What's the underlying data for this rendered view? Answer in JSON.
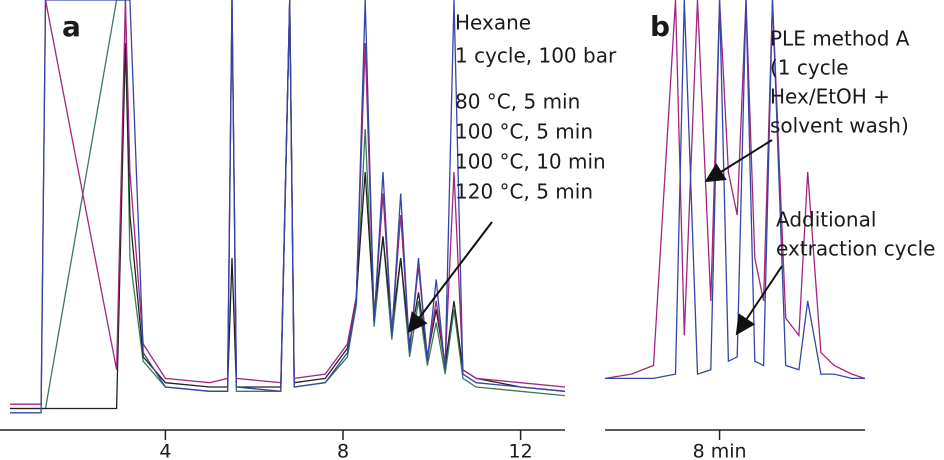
{
  "chart_data": [
    {
      "type": "line",
      "panel_label": "a",
      "annotations": [
        "Hexane",
        "1 cycle, 100 bar",
        "80 °C, 5 min",
        "100 °C, 5 min",
        "100 °C, 10 min",
        "120 °C, 5 min"
      ],
      "x": [
        0.5,
        1.2,
        1.3,
        2.9,
        3.1,
        3.2,
        3.5,
        4.0,
        5.0,
        5.4,
        5.5,
        5.6,
        6.6,
        6.8,
        6.9,
        7.6,
        8.1,
        8.3,
        8.5,
        8.7,
        8.9,
        9.1,
        9.3,
        9.5,
        9.7,
        9.9,
        10.1,
        10.3,
        10.5,
        10.7,
        11.0,
        12.0,
        13.0
      ],
      "series": [
        {
          "color": "#3b7a57",
          "values": [
            5,
            5,
            5,
            100,
            100,
            40,
            16,
            10,
            9,
            9,
            100,
            9,
            9,
            100,
            10,
            11,
            17,
            29,
            70,
            24,
            45,
            21,
            40,
            17,
            30,
            15,
            25,
            13,
            28,
            12,
            10,
            9,
            8
          ]
        },
        {
          "color": "#222222",
          "values": [
            5,
            5,
            5,
            5,
            90,
            50,
            17,
            11,
            10,
            10,
            40,
            10,
            10,
            100,
            11,
            12,
            19,
            31,
            60,
            27,
            45,
            24,
            40,
            20,
            32,
            17,
            28,
            15,
            30,
            14,
            12,
            10,
            9
          ]
        },
        {
          "color": "#a3267e",
          "values": [
            6,
            6,
            100,
            14,
            100,
            60,
            20,
            12,
            11,
            12,
            100,
            12,
            11,
            100,
            12,
            13,
            20,
            31,
            90,
            26,
            55,
            23,
            50,
            19,
            38,
            17,
            30,
            15,
            60,
            14,
            12,
            11,
            10
          ]
        },
        {
          "color": "#3446a6",
          "values": [
            4,
            4,
            100,
            100,
            100,
            100,
            18,
            10,
            9,
            9,
            100,
            10,
            9,
            100,
            10,
            11,
            18,
            30,
            100,
            25,
            60,
            22,
            55,
            18,
            40,
            16,
            35,
            14,
            100,
            13,
            11,
            10,
            9
          ]
        }
      ],
      "xlim": [
        0.5,
        13
      ],
      "ylim": [
        0,
        100
      ],
      "xticks": [
        4,
        8,
        12
      ]
    },
    {
      "type": "line",
      "panel_label": "b",
      "annotations": [
        "PLE method A",
        "(1 cycle",
        "Hex/EtOH +",
        "solvent wash)",
        "Additional",
        "extraction cycle"
      ],
      "x": [
        5.4,
        6.0,
        6.5,
        7.0,
        7.2,
        7.5,
        7.8,
        8.0,
        8.2,
        8.4,
        8.6,
        8.8,
        9.0,
        9.2,
        9.5,
        9.8,
        10.0,
        10.3,
        10.6,
        11.0,
        11.3
      ],
      "series": [
        {
          "color": "#a3267e",
          "values": [
            12,
            13,
            15,
            100,
            22,
            100,
            30,
            100,
            60,
            50,
            100,
            40,
            30,
            100,
            26,
            22,
            60,
            18,
            15,
            13,
            12
          ]
        },
        {
          "color": "#3446a6",
          "values": [
            12,
            12,
            12,
            13,
            100,
            13,
            14,
            100,
            16,
            17,
            100,
            16,
            15,
            100,
            15,
            14,
            30,
            13,
            13,
            12,
            12
          ]
        }
      ],
      "xlim": [
        5.4,
        11.3
      ],
      "ylim": [
        0,
        100
      ],
      "xticks": [
        {
          "value": 8,
          "label": "8 min"
        }
      ]
    }
  ]
}
